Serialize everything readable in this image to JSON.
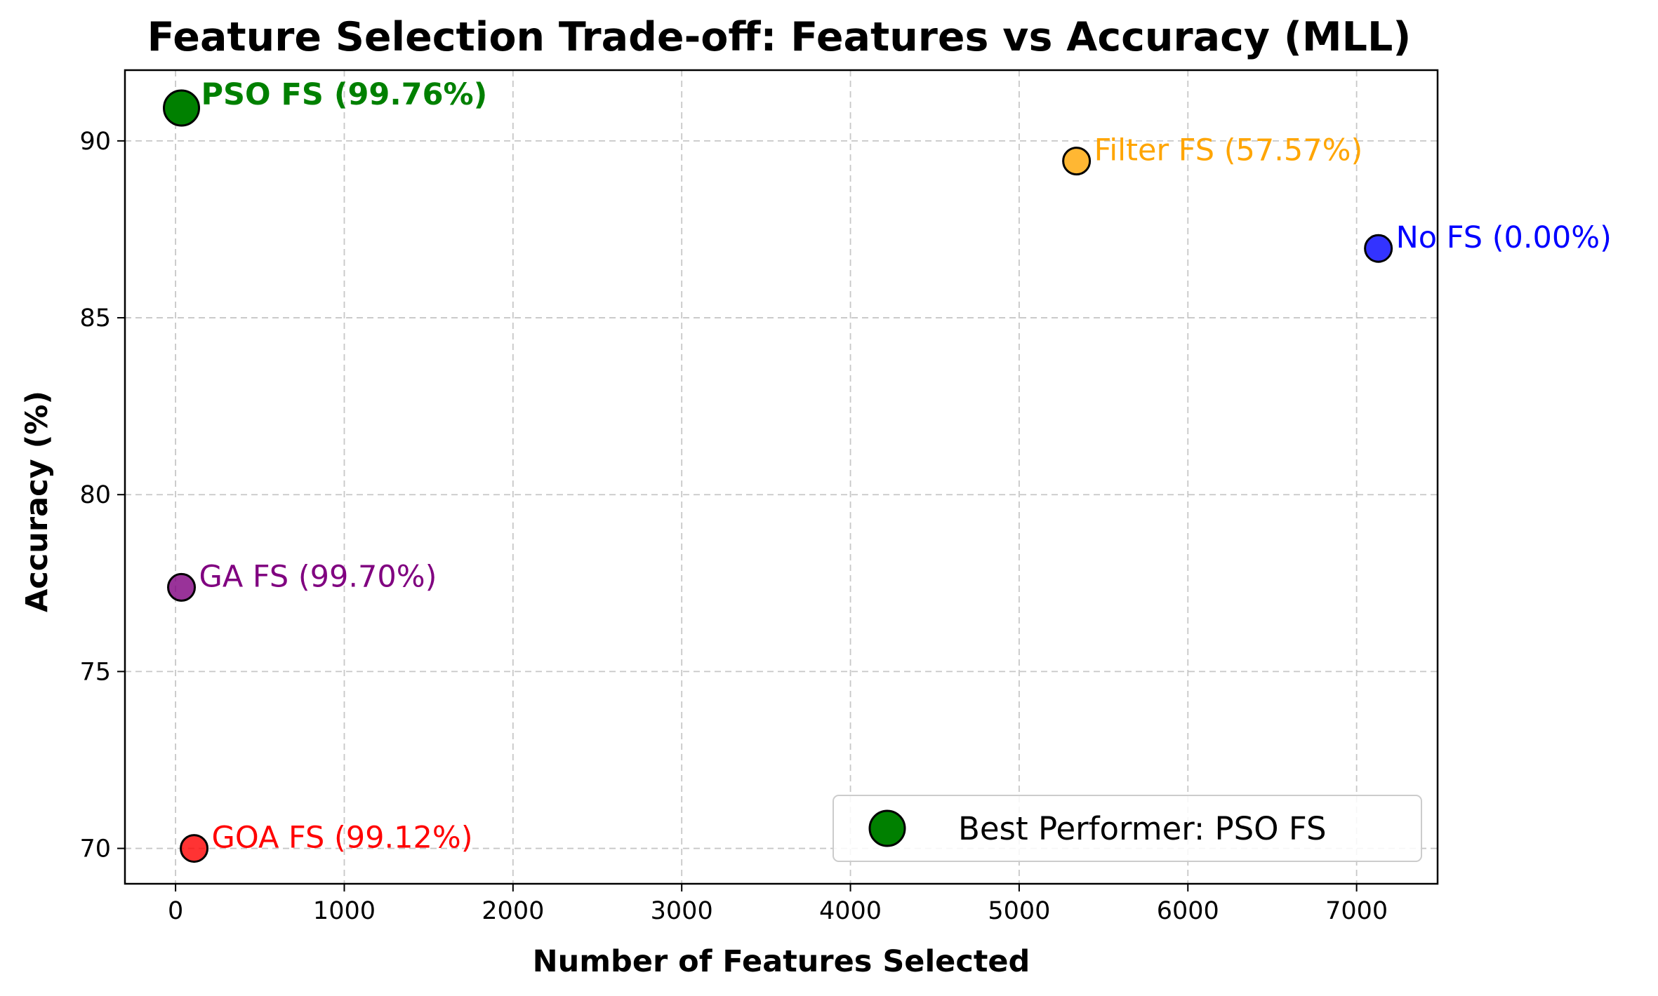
{
  "chart_data": {
    "type": "scatter",
    "title": "Feature Selection Trade-off: Features vs Accuracy (MLL)",
    "xlabel": "Number of Features Selected",
    "ylabel": "Accuracy (%)",
    "xlim": [
      -300,
      7480
    ],
    "ylim": [
      69,
      92
    ],
    "xticks": [
      0,
      1000,
      2000,
      3000,
      4000,
      5000,
      6000,
      7000
    ],
    "xtick_labels": [
      "0",
      "1000",
      "2000",
      "3000",
      "4000",
      "5000",
      "6000",
      "7000"
    ],
    "yticks": [
      70,
      75,
      80,
      85,
      90
    ],
    "ytick_labels": [
      "70",
      "75",
      "80",
      "85",
      "90"
    ],
    "grid": true,
    "legend_position": "lower-right",
    "points": [
      {
        "label": "PSO FS (99.76%)",
        "x": 35,
        "y": 90.93,
        "color": "#008000",
        "highlight": true
      },
      {
        "label": "Filter FS (57.57%)",
        "x": 5340,
        "y": 89.43,
        "color": "#FFA500",
        "highlight": false
      },
      {
        "label": "No FS (0.00%)",
        "x": 7129,
        "y": 86.96,
        "color": "#0000FF",
        "highlight": false
      },
      {
        "label": "GA FS (99.70%)",
        "x": 35,
        "y": 77.38,
        "color": "#800080",
        "highlight": false
      },
      {
        "label": "GOA FS (99.12%)",
        "x": 110,
        "y": 70.0,
        "color": "#FF0000",
        "highlight": false
      }
    ],
    "legend": [
      {
        "label": "Best Performer: PSO FS",
        "color": "#008000"
      }
    ]
  }
}
